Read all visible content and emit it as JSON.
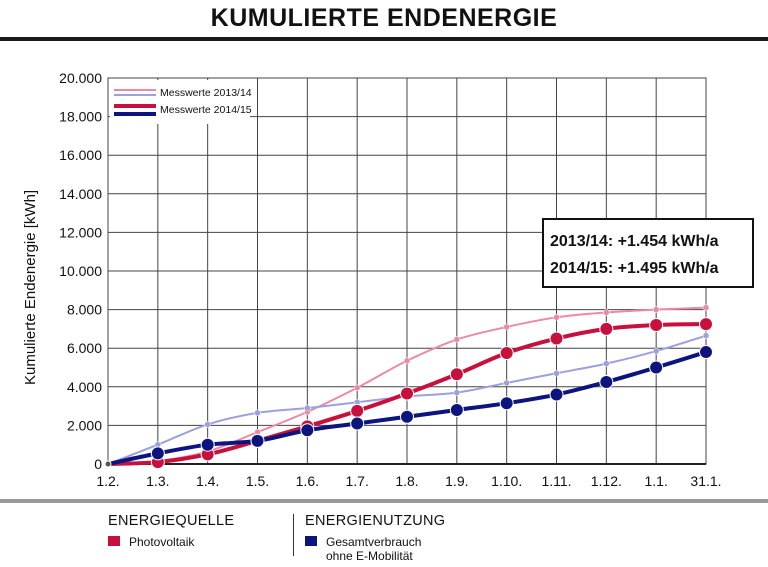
{
  "title": "KUMULIERTE ENDENERGIE",
  "legend_bottom": {
    "source_heading": "ENERGIEQUELLE",
    "source_item": "Photovoltaik",
    "usage_heading": "ENERGIENUTZUNG",
    "usage_item_line1": "Gesamtverbrauch",
    "usage_item_line2": "ohne E-Mobilität"
  },
  "annotation": {
    "line1": "2013/14: +1.454 kWh/a",
    "line2": "2014/15: +1.495 kWh/a"
  },
  "colors": {
    "pv_2014_15": "#c8103c",
    "pv_2013_14": "#ec8aa4",
    "use_2014_15": "#0c1480",
    "use_2013_14": "#9ca0dc",
    "legend_source_swatch": "#c8103c",
    "legend_usage_swatch": "#0c1480"
  },
  "chart_data": {
    "type": "line",
    "title": "KUMULIERTE ENDENERGIE",
    "ylabel": "Kumulierte Endenergie [kWh]",
    "xlabel": "",
    "categories": [
      "1.2.",
      "1.3.",
      "1.4.",
      "1.5.",
      "1.6.",
      "1.7.",
      "1.8.",
      "1.9.",
      "1.10.",
      "1.11.",
      "1.12.",
      "1.1.",
      "31.1."
    ],
    "ylim": [
      0,
      20000
    ],
    "yticks": [
      "0",
      "2.000",
      "4.000",
      "6.000",
      "8.000",
      "10.000",
      "12.000",
      "14.000",
      "16.000",
      "18.000",
      "20.000"
    ],
    "grid": true,
    "legend_position": "top-left",
    "legend_entries": [
      "Messwerte 2013/14",
      "Messwerte 2014/15"
    ],
    "series": [
      {
        "name": "Messwerte 2013/14",
        "source": "Photovoltaik",
        "year": "2013/14",
        "values": [
          0,
          150,
          650,
          1650,
          2700,
          3950,
          5350,
          6450,
          7100,
          7600,
          7850,
          8000,
          8100
        ]
      },
      {
        "name": "Messwerte 2013/14",
        "source": "Gesamtverbrauch ohne E-Mobilität",
        "year": "2013/14",
        "values": [
          0,
          1000,
          2050,
          2650,
          2900,
          3200,
          3500,
          3700,
          4200,
          4700,
          5200,
          5850,
          6650
        ]
      },
      {
        "name": "Messwerte 2014/15",
        "source": "Photovoltaik",
        "year": "2014/15",
        "values": [
          0,
          100,
          500,
          1200,
          1950,
          2750,
          3650,
          4650,
          5750,
          6500,
          7000,
          7200,
          7250
        ]
      },
      {
        "name": "Messwerte 2014/15",
        "source": "Gesamtverbrauch ohne E-Mobilität",
        "year": "2014/15",
        "values": [
          0,
          550,
          1000,
          1200,
          1750,
          2100,
          2450,
          2800,
          3150,
          3600,
          4250,
          5000,
          5800
        ]
      }
    ]
  }
}
